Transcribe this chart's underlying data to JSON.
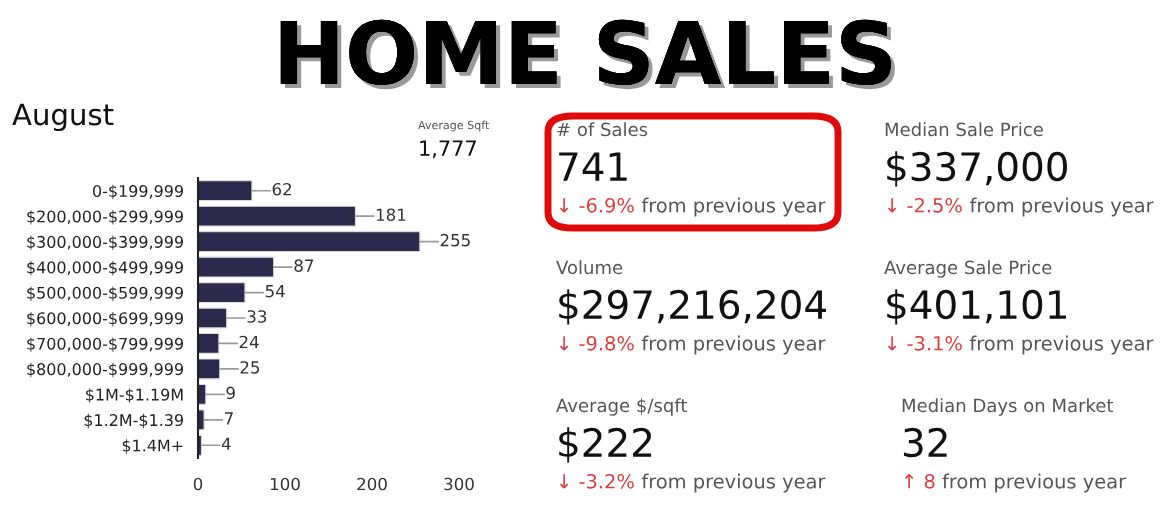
{
  "chart_data": [
    {
      "type": "bar",
      "orientation": "horizontal",
      "title": "HOME SALES",
      "subtitle": "August",
      "categories": [
        "0-$199,999",
        "$200,000-$299,999",
        "$300,000-$399,999",
        "$400,000-$499,999",
        "$500,000-$599,999",
        "$600,000-$699,999",
        "$700,000-$799,999",
        "$800,000-$999,999",
        "$1M-$1.19M",
        "$1.2M-$1.39",
        "$1.4M+"
      ],
      "values": [
        62,
        181,
        255,
        87,
        54,
        33,
        24,
        25,
        9,
        7,
        4
      ],
      "color": "#2b2a4c",
      "xlim": [
        0,
        300
      ],
      "xticks": [
        0,
        100,
        200,
        300
      ],
      "data_labels": true,
      "grid": false,
      "annotations": [
        "Average Sqft",
        "1,777"
      ]
    },
    {
      "type": "other",
      "annotations": [
        "# of Sales",
        "741",
        "↓ -6.9%",
        "from previous year",
        "Median Sale Price",
        "$337,000",
        "↓ -2.5%",
        "from previous year",
        "Volume",
        "$297,216,204",
        "↓ -9.8%",
        "from previous year",
        "Average Sale Price",
        "$401,101",
        "↓ -3.1%",
        "from previous year",
        "Average $/sqft",
        "$222",
        "↓ -3.2%",
        "from previous year",
        "Median Days on Market",
        "32",
        "↑ 8",
        "from previous year"
      ]
    }
  ]
}
